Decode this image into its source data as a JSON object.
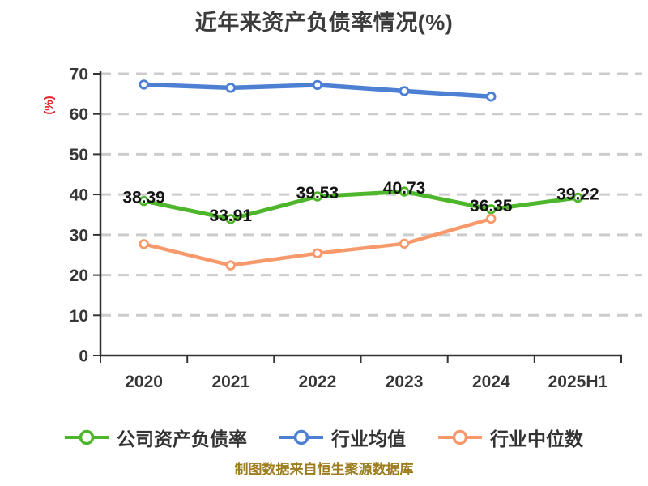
{
  "title": "近年来资产负债率情况(%)",
  "y_axis_unit": "(%)",
  "footer_note": "制图数据来自恒生聚源数据库",
  "style_colors": {
    "title": "#3c3c3c",
    "axis": "#333333",
    "tick_label": "#363636",
    "gridline": "#cccccc",
    "data_label": "#141414",
    "unit_label": "#e02222",
    "footer": "#9c7c1c"
  },
  "chart_data": {
    "type": "line",
    "title": "近年来资产负债率情况(%)",
    "categories": [
      "2020",
      "2021",
      "2022",
      "2023",
      "2024",
      "2025H1"
    ],
    "series": [
      {
        "key": "company-debt-ratio",
        "name": "公司资产负债率",
        "color": "#4eb62b",
        "line_width": 5,
        "show_labels": true,
        "values": [
          38.39,
          33.91,
          39.53,
          40.73,
          36.35,
          39.22
        ]
      },
      {
        "key": "industry-mean",
        "name": "行业均值",
        "color": "#4d7fd3",
        "line_width": 5.5,
        "show_labels": false,
        "values": [
          67.3,
          66.5,
          67.2,
          65.7,
          64.3,
          null
        ]
      },
      {
        "key": "industry-median",
        "name": "行业中位数",
        "color": "#f8996c",
        "line_width": 4.5,
        "show_labels": false,
        "values": [
          27.7,
          22.4,
          25.4,
          27.8,
          34.0,
          null
        ]
      }
    ],
    "xlabel": "",
    "ylabel": "(%)",
    "ylim": [
      0,
      70
    ],
    "yticks": [
      0,
      10,
      20,
      30,
      40,
      50,
      60,
      70
    ],
    "grid": "horizontal-dashed",
    "legend_position": "bottom",
    "label_decimals": 2
  }
}
